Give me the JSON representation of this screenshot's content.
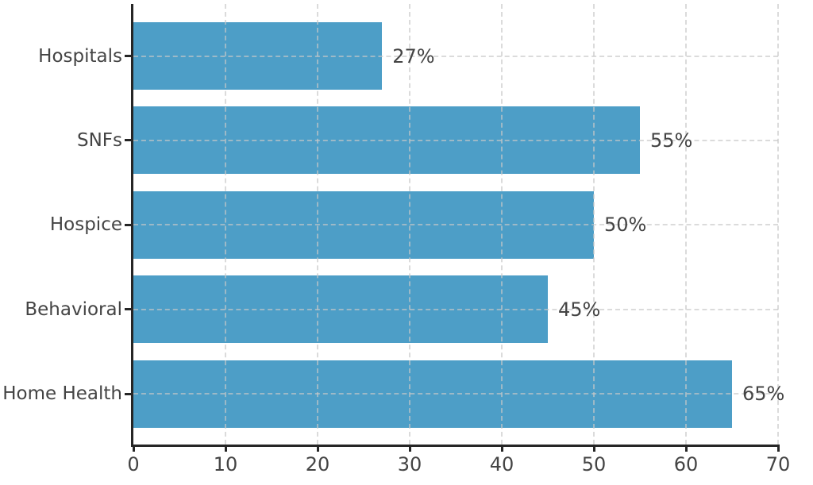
{
  "chart_data": {
    "type": "bar",
    "orientation": "horizontal",
    "title": "",
    "xlabel": "",
    "ylabel": "",
    "categories": [
      "Hospitals",
      "SNFs",
      "Hospice",
      "Behavioral",
      "Home Health"
    ],
    "values": [
      27,
      55,
      50,
      45,
      65
    ],
    "value_labels": [
      "27%",
      "55%",
      "50%",
      "45%",
      "65%"
    ],
    "x_ticks": [
      0,
      10,
      20,
      30,
      40,
      50,
      60,
      70
    ],
    "xlim": [
      0,
      70
    ],
    "grid": "dashed",
    "legend": "none",
    "colors": {
      "bar": "#4D9EC7",
      "text": "#444444",
      "axis": "#262626",
      "grid": "#C8C8C8"
    }
  }
}
